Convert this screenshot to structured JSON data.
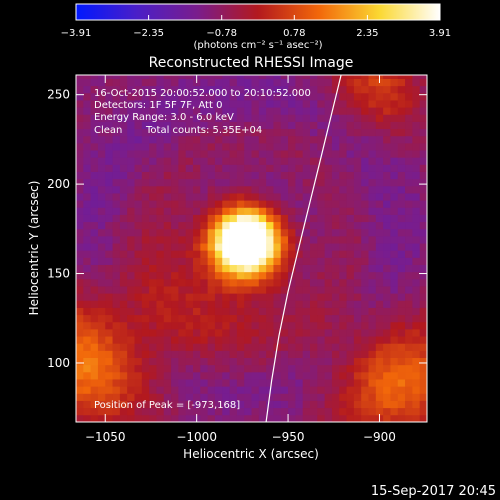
{
  "chart_data": {
    "type": "heatmap",
    "title": "Reconstructed RHESSI Image",
    "xlabel": "Heliocentric X (arcsec)",
    "ylabel": "Heliocentric Y (arcsec)",
    "xlim": [
      -1066,
      -874
    ],
    "ylim": [
      67,
      261
    ],
    "x_ticks": [
      -1050,
      -1000,
      -950,
      -900
    ],
    "y_ticks": [
      100,
      150,
      200,
      250
    ],
    "x_tick_labels": [
      "−1050",
      "−1000",
      "−950",
      "−900"
    ],
    "y_tick_labels": [
      "100",
      "150",
      "200",
      "250"
    ],
    "colorbar": {
      "min": -3.91,
      "max": 3.91,
      "ticks": [
        -3.91,
        -2.35,
        -0.78,
        0.78,
        2.35,
        3.91
      ],
      "tick_labels": [
        "−3.91",
        "−2.35",
        "−0.78",
        "0.78",
        "2.35",
        "3.91"
      ],
      "units": "(photons cm⁻² s⁻¹ asec⁻²)",
      "colors": [
        "#0019ff",
        "#4a1ec8",
        "#7a1d8c",
        "#b3191e",
        "#f2670a",
        "#fbd832",
        "#ffffff"
      ]
    },
    "annotations": [
      "16-Oct-2015 20:00:52.000 to 20:10:52.000",
      "Detectors: 1F 5F 7F, Att 0",
      "Energy Range: 3.0 - 6.0 keV",
      "Clean",
      "Total counts: 5.35E+04"
    ],
    "peak_label": "Position of Peak = [-973,168]",
    "peak": {
      "x": -973,
      "y": 168,
      "value": 3.91
    },
    "grid": false,
    "limb_curve": {
      "x": [
        -962,
        -959,
        -955,
        -950,
        -944,
        -938,
        -932,
        -926,
        -921
      ],
      "y": [
        67,
        90,
        115,
        140,
        165,
        190,
        215,
        240,
        261
      ]
    },
    "sources": [
      {
        "x": -973,
        "y": 168,
        "amp": 6.4,
        "sigma": 13
      },
      {
        "x": -985,
        "y": 150,
        "amp": 1.3,
        "sigma": 30
      },
      {
        "x": -1062,
        "y": 100,
        "amp": 2.4,
        "sigma": 26
      },
      {
        "x": -888,
        "y": 88,
        "amp": 2.2,
        "sigma": 25
      },
      {
        "x": -900,
        "y": 255,
        "amp": 1.5,
        "sigma": 18
      }
    ],
    "background": -1.1
  },
  "footer": {
    "timestamp": "15-Sep-2017 20:45"
  },
  "colors": {
    "background": "#000000",
    "text": "#ffffff"
  }
}
